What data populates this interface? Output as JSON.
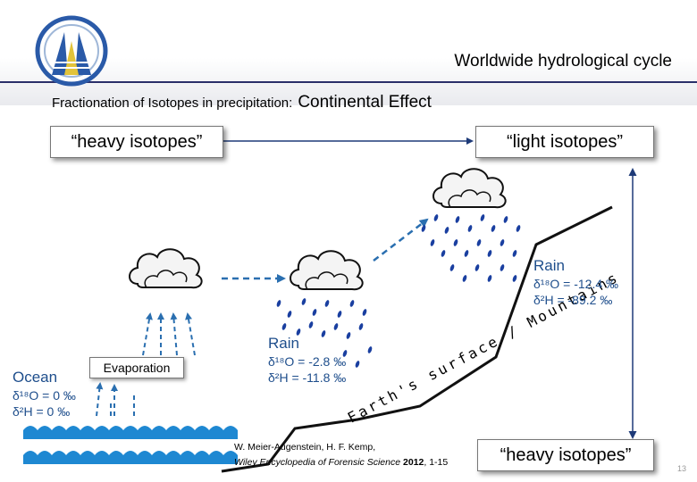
{
  "slide": {
    "title": "Worldwide hydrological cycle",
    "subtitle": "Fractionation of Isotopes in precipitation:",
    "subtitle_emphasis": "Continental Effect",
    "page_number": "13"
  },
  "boxes": {
    "top_left": "“heavy isotopes”",
    "top_right": "“light isotopes”",
    "bottom_right": "“heavy isotopes”"
  },
  "ocean": {
    "title": "Ocean",
    "o18": "δ¹⁸O = 0 ‰",
    "h2": "δ²H = 0 ‰"
  },
  "evaporation": "Evaporation",
  "rain_1": {
    "title": "Rain",
    "o18": "δ¹⁸O = -2.8 ‰",
    "h2": "δ²H = -11.8 ‰"
  },
  "rain_2": {
    "title": "Rain",
    "o18": "δ¹⁸O = -12.4 ‰",
    "h2": "δ²H = -89.2 ‰"
  },
  "slope_label": "Earth's surface / Mountains",
  "reference": {
    "authors": "W. Meier-Augenstein, H. F. Kemp,",
    "source": "Wiley Encyclopedia of Forensic Science",
    "year": "2012",
    "pages": ", 1-15"
  },
  "colors": {
    "water": "#1e88d2",
    "label_blue": "#1e4e8c",
    "arrow": "#2a6fb0",
    "rain": "#1a3fa0"
  }
}
